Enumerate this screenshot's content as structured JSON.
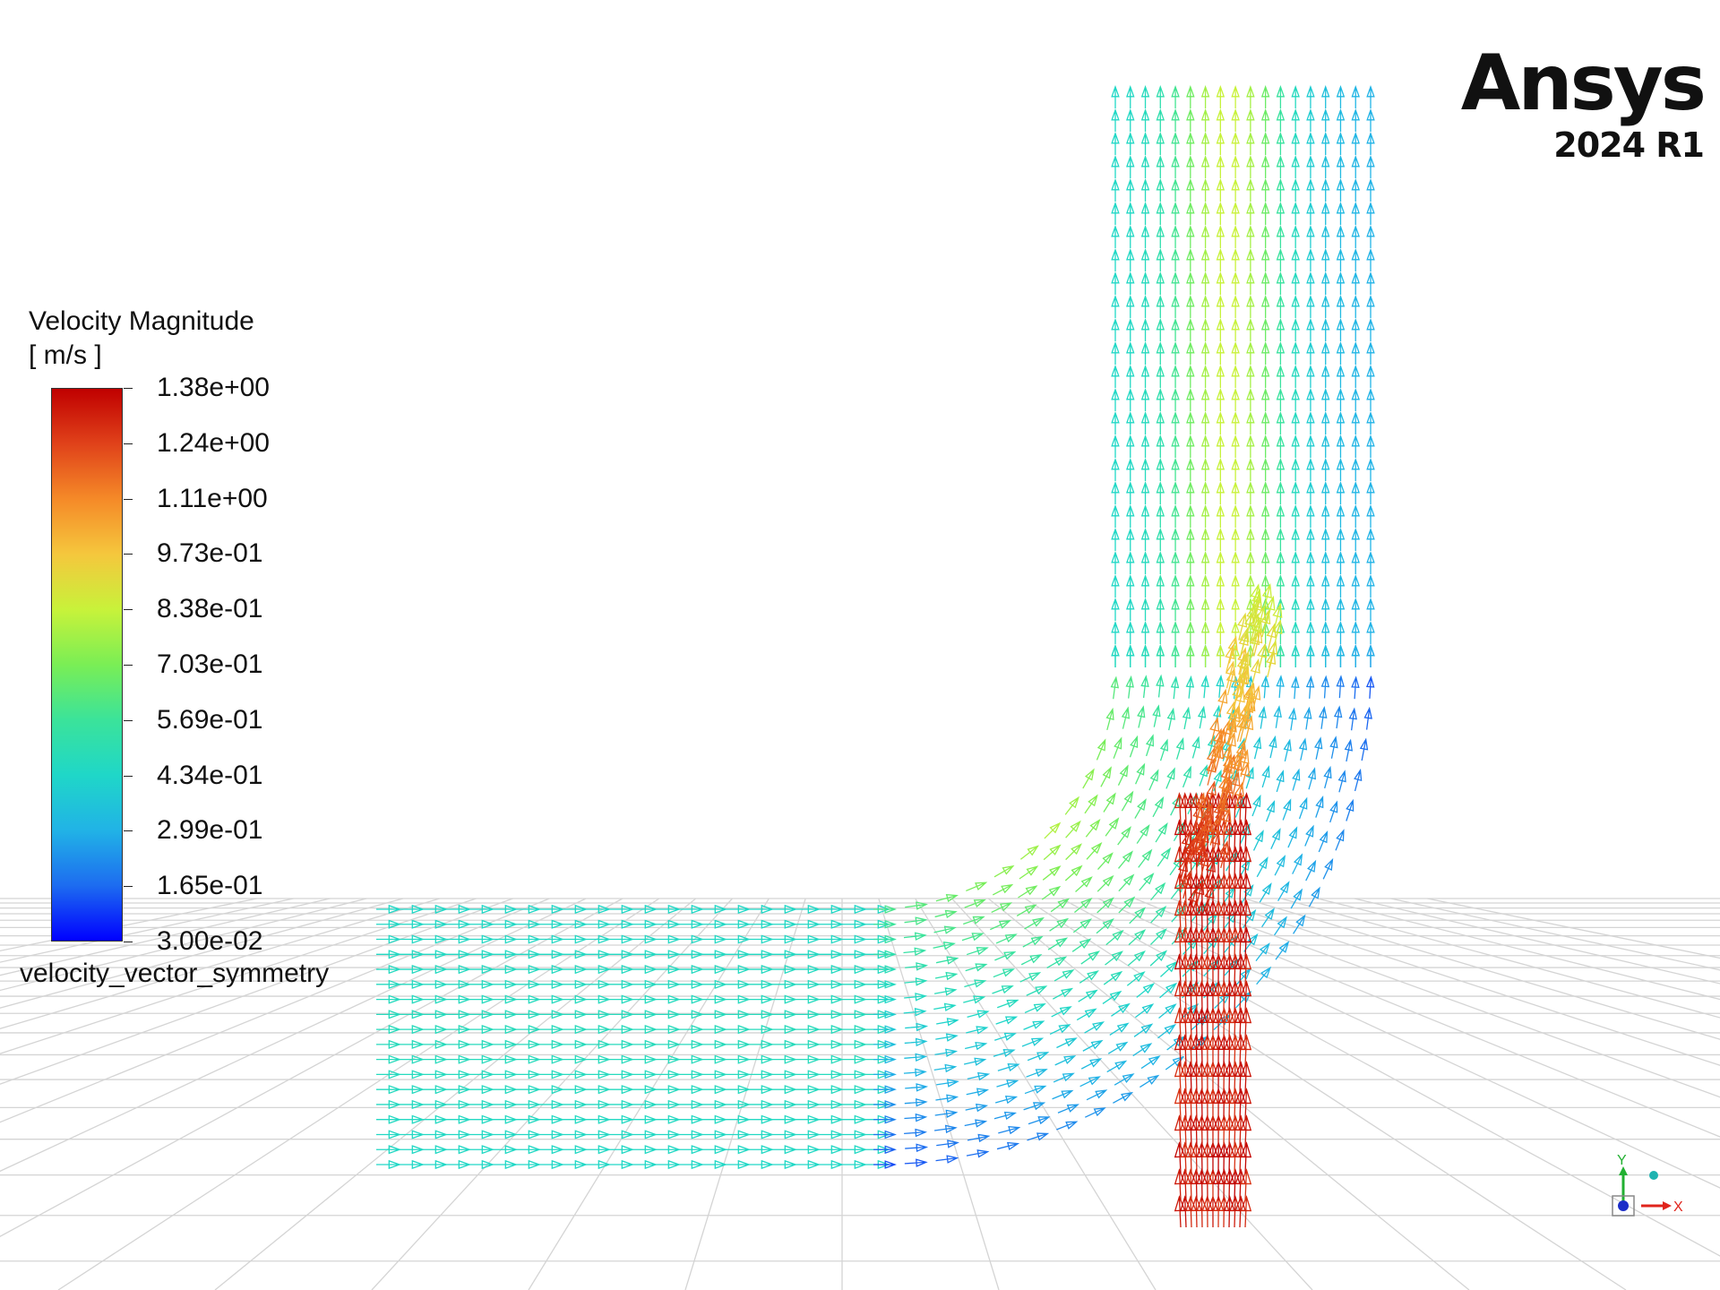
{
  "logo": {
    "brand": "Ansys",
    "version": "2024 R1"
  },
  "legend": {
    "title_line1": "Velocity Magnitude",
    "title_line2": "[ m/s ]",
    "ticks": [
      "1.38e+00",
      "1.24e+00",
      "1.11e+00",
      "9.73e-01",
      "8.38e-01",
      "7.03e-01",
      "5.69e-01",
      "4.34e-01",
      "2.99e-01",
      "1.65e-01",
      "3.00e-02"
    ],
    "name": "velocity_vector_symmetry",
    "colormap": [
      "#0000ff",
      "#1d6cf0",
      "#21b3e6",
      "#1fd7c8",
      "#3be39a",
      "#7aee55",
      "#c8f23a",
      "#f5c73d",
      "#f58a28",
      "#e0421a",
      "#c00000"
    ]
  },
  "axes": {
    "x_label": "X",
    "y_label": "Y",
    "x_color": "#e0241c",
    "y_color": "#22b032",
    "z_color": "#1c2ec8"
  }
}
